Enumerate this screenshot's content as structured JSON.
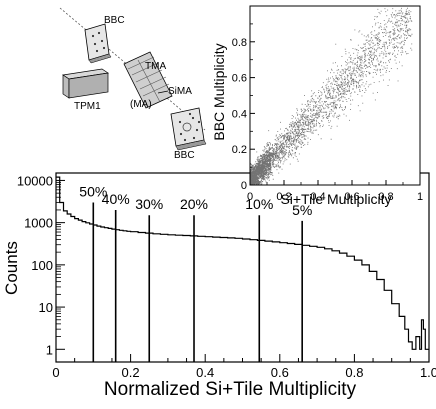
{
  "main": {
    "type": "line",
    "xlabel": "Normalized Si+Tile Multiplicity",
    "ylabel": "Counts",
    "xlim": [
      0,
      1
    ],
    "ylim": [
      0.5,
      15000
    ],
    "yscale": "log",
    "x_ticks": [
      "0",
      "0.2",
      "0.4",
      "0.6",
      "0.8",
      "1.0"
    ],
    "y_ticks": [
      "1",
      "10",
      "100",
      "1000",
      "10000"
    ],
    "step_points": [
      [
        0.0,
        12000
      ],
      [
        0.01,
        3000
      ],
      [
        0.02,
        1900
      ],
      [
        0.03,
        1600
      ],
      [
        0.04,
        1400
      ],
      [
        0.05,
        1250
      ],
      [
        0.06,
        1150
      ],
      [
        0.07,
        1060
      ],
      [
        0.08,
        990
      ],
      [
        0.09,
        930
      ],
      [
        0.1,
        880
      ],
      [
        0.11,
        830
      ],
      [
        0.12,
        790
      ],
      [
        0.13,
        760
      ],
      [
        0.14,
        730
      ],
      [
        0.15,
        705
      ],
      [
        0.16,
        680
      ],
      [
        0.17,
        660
      ],
      [
        0.18,
        640
      ],
      [
        0.19,
        625
      ],
      [
        0.2,
        610
      ],
      [
        0.22,
        585
      ],
      [
        0.24,
        565
      ],
      [
        0.26,
        545
      ],
      [
        0.28,
        530
      ],
      [
        0.3,
        515
      ],
      [
        0.32,
        505
      ],
      [
        0.34,
        495
      ],
      [
        0.36,
        485
      ],
      [
        0.38,
        475
      ],
      [
        0.4,
        465
      ],
      [
        0.42,
        455
      ],
      [
        0.44,
        445
      ],
      [
        0.46,
        435
      ],
      [
        0.48,
        425
      ],
      [
        0.5,
        410
      ],
      [
        0.52,
        395
      ],
      [
        0.54,
        380
      ],
      [
        0.56,
        365
      ],
      [
        0.58,
        350
      ],
      [
        0.6,
        335
      ],
      [
        0.62,
        320
      ],
      [
        0.64,
        305
      ],
      [
        0.66,
        290
      ],
      [
        0.68,
        275
      ],
      [
        0.7,
        260
      ],
      [
        0.72,
        240
      ],
      [
        0.74,
        215
      ],
      [
        0.76,
        190
      ],
      [
        0.78,
        160
      ],
      [
        0.8,
        130
      ],
      [
        0.82,
        100
      ],
      [
        0.84,
        70
      ],
      [
        0.86,
        45
      ],
      [
        0.88,
        25
      ],
      [
        0.9,
        12
      ],
      [
        0.92,
        6
      ],
      [
        0.935,
        3
      ],
      [
        0.945,
        1.5
      ],
      [
        0.955,
        1
      ],
      [
        0.965,
        2
      ],
      [
        0.975,
        1
      ],
      [
        0.98,
        5
      ],
      [
        0.985,
        3
      ],
      [
        0.99,
        1
      ],
      [
        1.0,
        1
      ]
    ],
    "percentile_lines": [
      {
        "label": "50%",
        "x": 0.1,
        "top": 3000
      },
      {
        "label": "40%",
        "x": 0.16,
        "top": 2000
      },
      {
        "label": "30%",
        "x": 0.25,
        "top": 1500
      },
      {
        "label": "20%",
        "x": 0.37,
        "top": 1500
      },
      {
        "label": "10%",
        "x": 0.545,
        "top": 1500
      },
      {
        "label": "5%",
        "x": 0.66,
        "top": 1100
      }
    ]
  },
  "inset": {
    "type": "scatter",
    "xlabel": "Si+Tile Multiplicity",
    "ylabel": "BBC Multiplicity",
    "xlim": [
      0,
      1
    ],
    "ylim": [
      0,
      1
    ],
    "x_ticks": [
      "0",
      "0.2",
      "0.4",
      "0.6",
      "0.8",
      "1"
    ],
    "y_ticks": [
      "0",
      "0.2",
      "0.4",
      "0.6",
      "0.8"
    ],
    "trend": {
      "slope": 1.0,
      "intercept": 0.03,
      "spread": 0.09
    },
    "color": "#000000"
  },
  "detector_diagram": {
    "labels": [
      "BBC",
      "TMA",
      "SiMA",
      "(MA)",
      "TPM1",
      "BBC"
    ]
  }
}
